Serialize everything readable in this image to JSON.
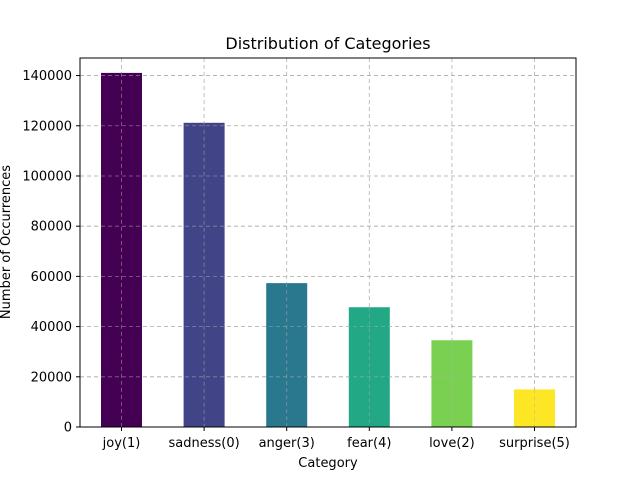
{
  "chart_data": {
    "type": "bar",
    "title": "Distribution of Categories",
    "xlabel": "Category",
    "ylabel": "Number of Occurrences",
    "categories": [
      "joy(1)",
      "sadness(0)",
      "anger(3)",
      "fear(4)",
      "love(2)",
      "surprise(5)"
    ],
    "values": [
      141067,
      121187,
      57317,
      47712,
      34554,
      14972
    ],
    "colors": [
      "#440154",
      "#414487",
      "#2a788e",
      "#22a884",
      "#7ad151",
      "#fde725"
    ],
    "ylim": [
      0,
      147000
    ],
    "yticks": [
      0,
      20000,
      40000,
      60000,
      80000,
      100000,
      120000,
      140000
    ],
    "ytick_labels": [
      "0",
      "20000",
      "40000",
      "60000",
      "80000",
      "100000",
      "120000",
      "140000"
    ],
    "grid": true,
    "legend": "none"
  }
}
